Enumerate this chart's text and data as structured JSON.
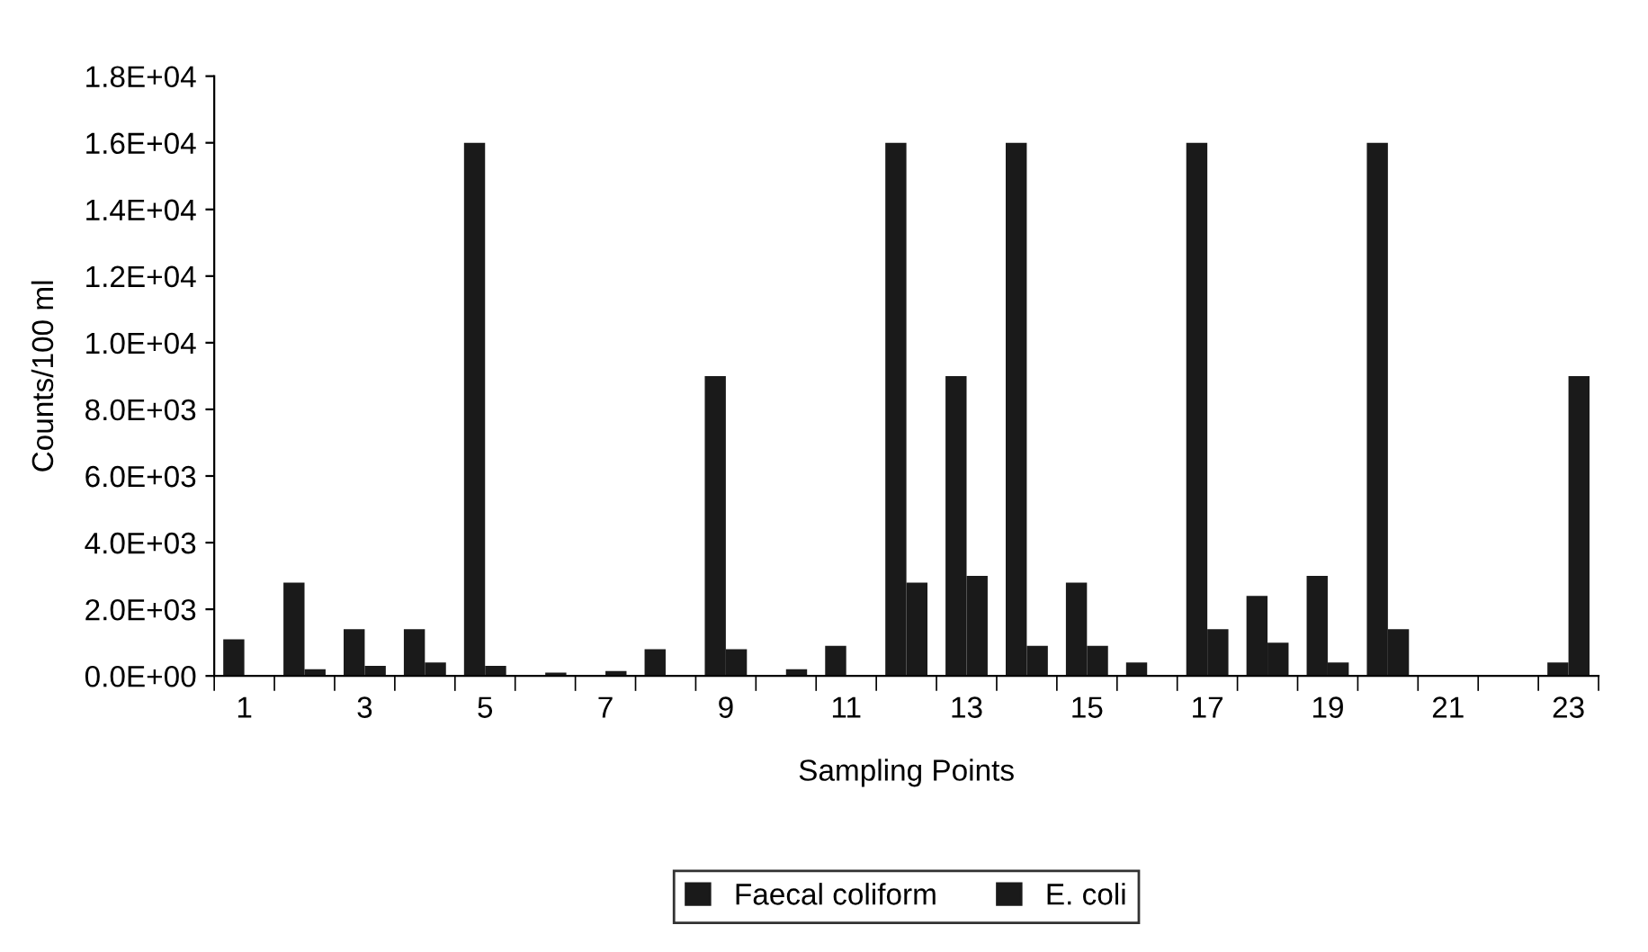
{
  "chart_data": {
    "type": "bar",
    "xlabel": "Sampling Points",
    "ylabel": "Counts/100 ml",
    "categories": [
      "1",
      null,
      "3",
      null,
      "5",
      null,
      "7",
      null,
      "9",
      null,
      "11",
      null,
      "13",
      null,
      "15",
      null,
      "17",
      null,
      "19",
      null,
      "21",
      null,
      "23"
    ],
    "series": [
      {
        "name": "Faecal coliform",
        "color": "#1a1a1a",
        "values": [
          1100,
          2800,
          1400,
          1400,
          16000,
          null,
          null,
          800,
          9000,
          null,
          900,
          16000,
          9000,
          16000,
          2800,
          400,
          16000,
          2400,
          3000,
          16000,
          0,
          0,
          400
        ]
      },
      {
        "name": "E. coli",
        "color": "#1a1a1a",
        "values": [
          null,
          200,
          300,
          400,
          300,
          100,
          150,
          null,
          800,
          200,
          0,
          2800,
          3000,
          900,
          900,
          0,
          1400,
          1000,
          400,
          1400,
          0,
          0,
          9000
        ]
      }
    ],
    "ylim": [
      0,
      18000
    ],
    "yticks": [
      {
        "value": 0,
        "label": "0.0E+00"
      },
      {
        "value": 2000,
        "label": "2.0E+03"
      },
      {
        "value": 4000,
        "label": "4.0E+03"
      },
      {
        "value": 6000,
        "label": "6.0E+03"
      },
      {
        "value": 8000,
        "label": "8.0E+03"
      },
      {
        "value": 10000,
        "label": "1.0E+04"
      },
      {
        "value": 12000,
        "label": "1.2E+04"
      },
      {
        "value": 14000,
        "label": "1.4E+04"
      },
      {
        "value": 16000,
        "label": "1.6E+04"
      },
      {
        "value": 18000,
        "label": "1.8E+04"
      }
    ],
    "grid": false,
    "legend": "bottom"
  }
}
